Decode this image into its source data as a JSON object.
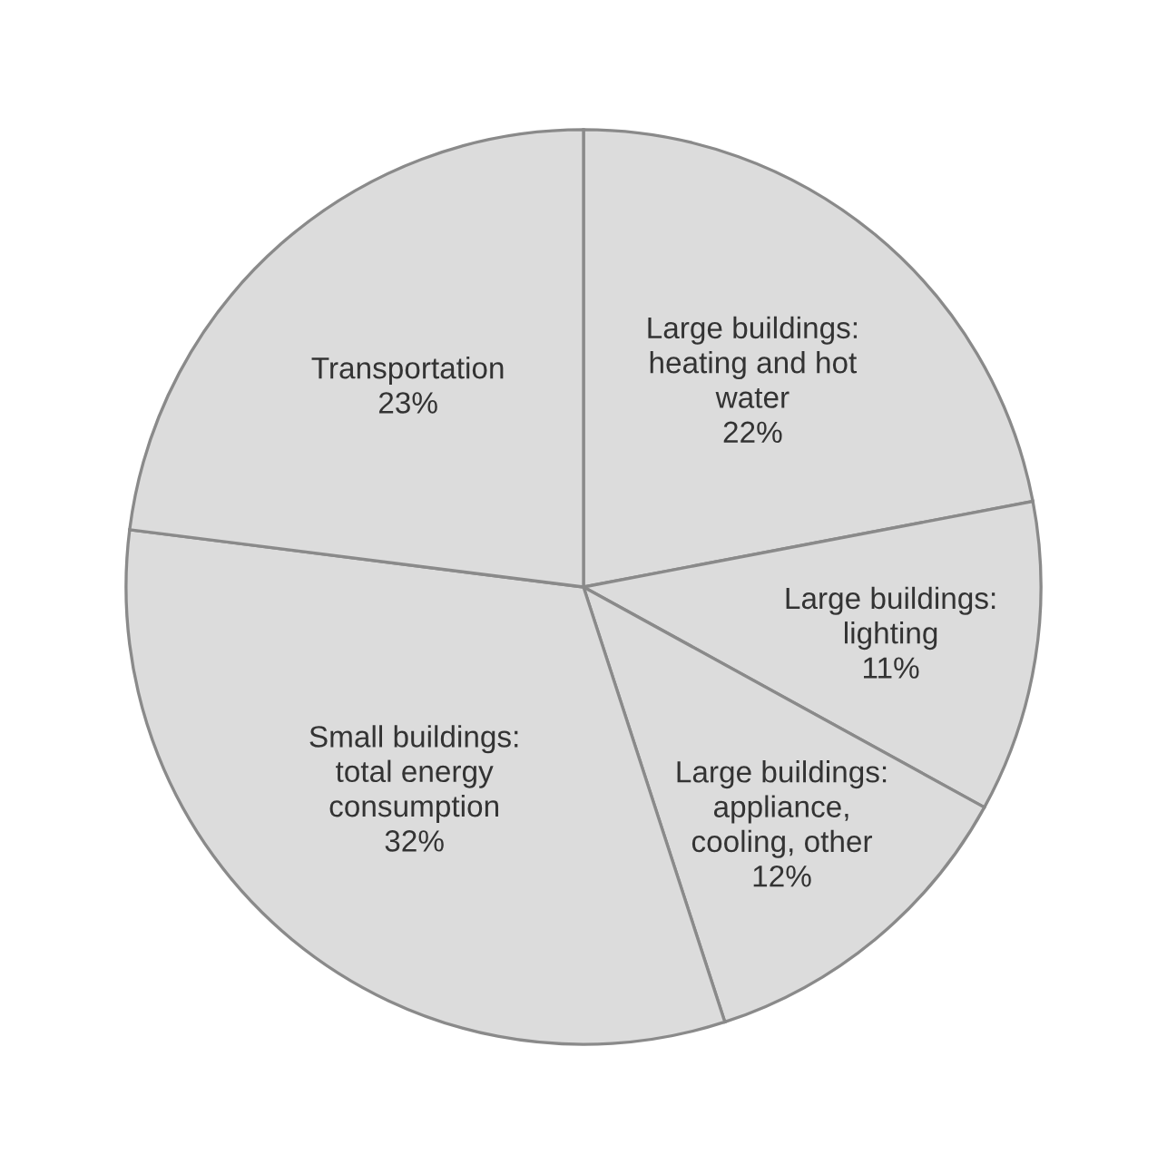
{
  "chart_data": {
    "type": "pie",
    "categories": [
      "Large buildings:\nheating and hot\nwater",
      "Large buildings:\nlighting",
      "Large buildings:\nappliance,\ncooling, other",
      "Small buildings:\ntotal energy\nconsumption",
      "Transportation"
    ],
    "values": [
      22,
      11,
      12,
      32,
      23
    ],
    "value_labels": [
      "22%",
      "11%",
      "12%",
      "32%",
      "23%"
    ],
    "colors": [
      "#dcdcdc",
      "#dcdcdc",
      "#dcdcdc",
      "#dcdcdc",
      "#dcdcdc"
    ]
  }
}
